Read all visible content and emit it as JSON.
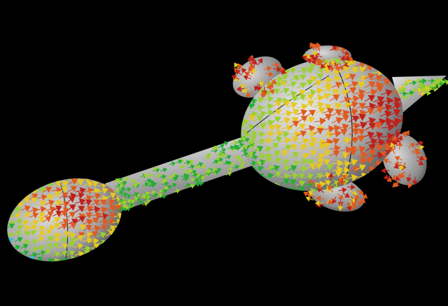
{
  "scene": {
    "subject": "vector-field-rendering-on-3d-model",
    "background_color": "#000000",
    "surface_color": "#b4b4b4",
    "arrow_palette": {
      "high": "#c0201a",
      "mid_high": "#e05a20",
      "mid": "#e6c820",
      "mid_low": "#9ad030",
      "low": "#20b030",
      "lowest": "#30c0d0"
    }
  }
}
